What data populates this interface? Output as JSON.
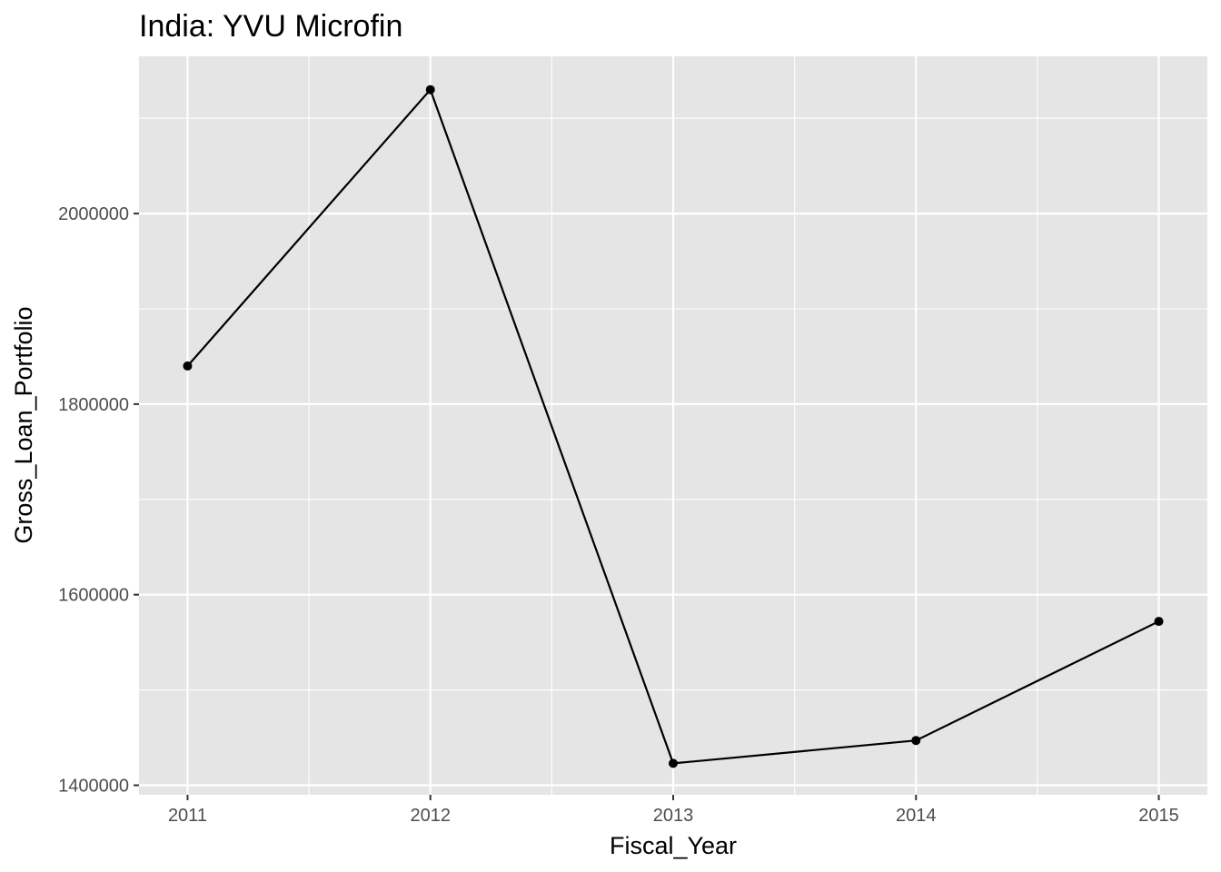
{
  "chart_data": {
    "type": "line",
    "title": "India:  YVU Microfin",
    "xlabel": "Fiscal_Year",
    "ylabel": "Gross_Loan_Portfolio",
    "x": [
      2011,
      2012,
      2013,
      2014,
      2015
    ],
    "series": [
      {
        "values": [
          1840000,
          2130000,
          1423000,
          1447000,
          1572000
        ]
      }
    ],
    "x_ticks": [
      "2011",
      "2012",
      "2013",
      "2014",
      "2015"
    ],
    "y_ticks": [
      "1400000",
      "1600000",
      "1800000",
      "2000000"
    ],
    "y_tick_values": [
      1400000,
      1600000,
      1800000,
      2000000
    ],
    "xlim": [
      2010.8,
      2015.2
    ],
    "ylim": [
      1390000,
      2165000
    ],
    "grid": true,
    "colors": {
      "panel": "#e5e5e5",
      "grid": "#ffffff",
      "line": "#000000",
      "point": "#000000"
    }
  }
}
